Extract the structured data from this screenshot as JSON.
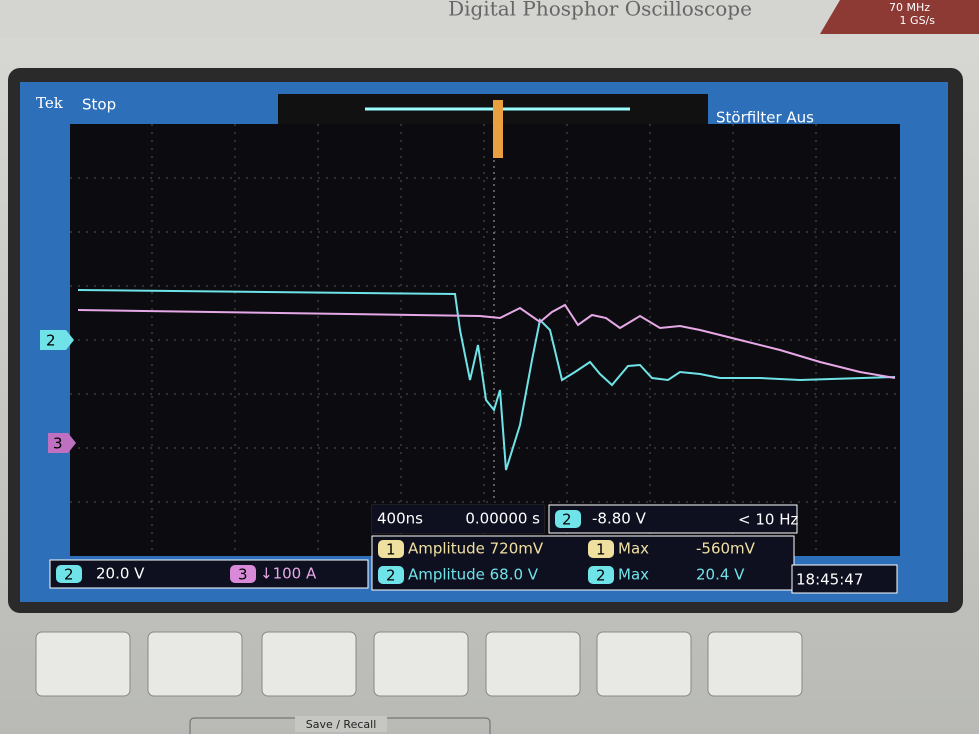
{
  "header": {
    "model": "Digital Phosphor Oscilloscope",
    "bandwidth": "70 MHz",
    "sample_rate": "1 GS/s"
  },
  "screen": {
    "brand": "Tek",
    "status": "Stop",
    "filter": "Störfilter Aus",
    "markers": {
      "ch2": "2",
      "ch3": "3"
    },
    "timebase": {
      "scale": "400ns",
      "position": "0.00000 s"
    },
    "trigger": {
      "channel": "2",
      "level": "-8.80 V",
      "frequency": "< 10 Hz"
    },
    "measurements": [
      {
        "channel": "1",
        "label": "Amplitude 720mV",
        "stat_channel": "1",
        "stat": "Max",
        "stat_value": "-560mV"
      },
      {
        "channel": "2",
        "label": "Amplitude 68.0 V",
        "stat_channel": "2",
        "stat": "Max",
        "stat_value": "20.4 V"
      }
    ],
    "channels": [
      {
        "channel": "2",
        "scale": "20.0 V"
      },
      {
        "channel": "3",
        "scale": "↓100 A"
      }
    ],
    "clock": "18:45:47"
  },
  "panel": {
    "section": "Save / Recall"
  }
}
